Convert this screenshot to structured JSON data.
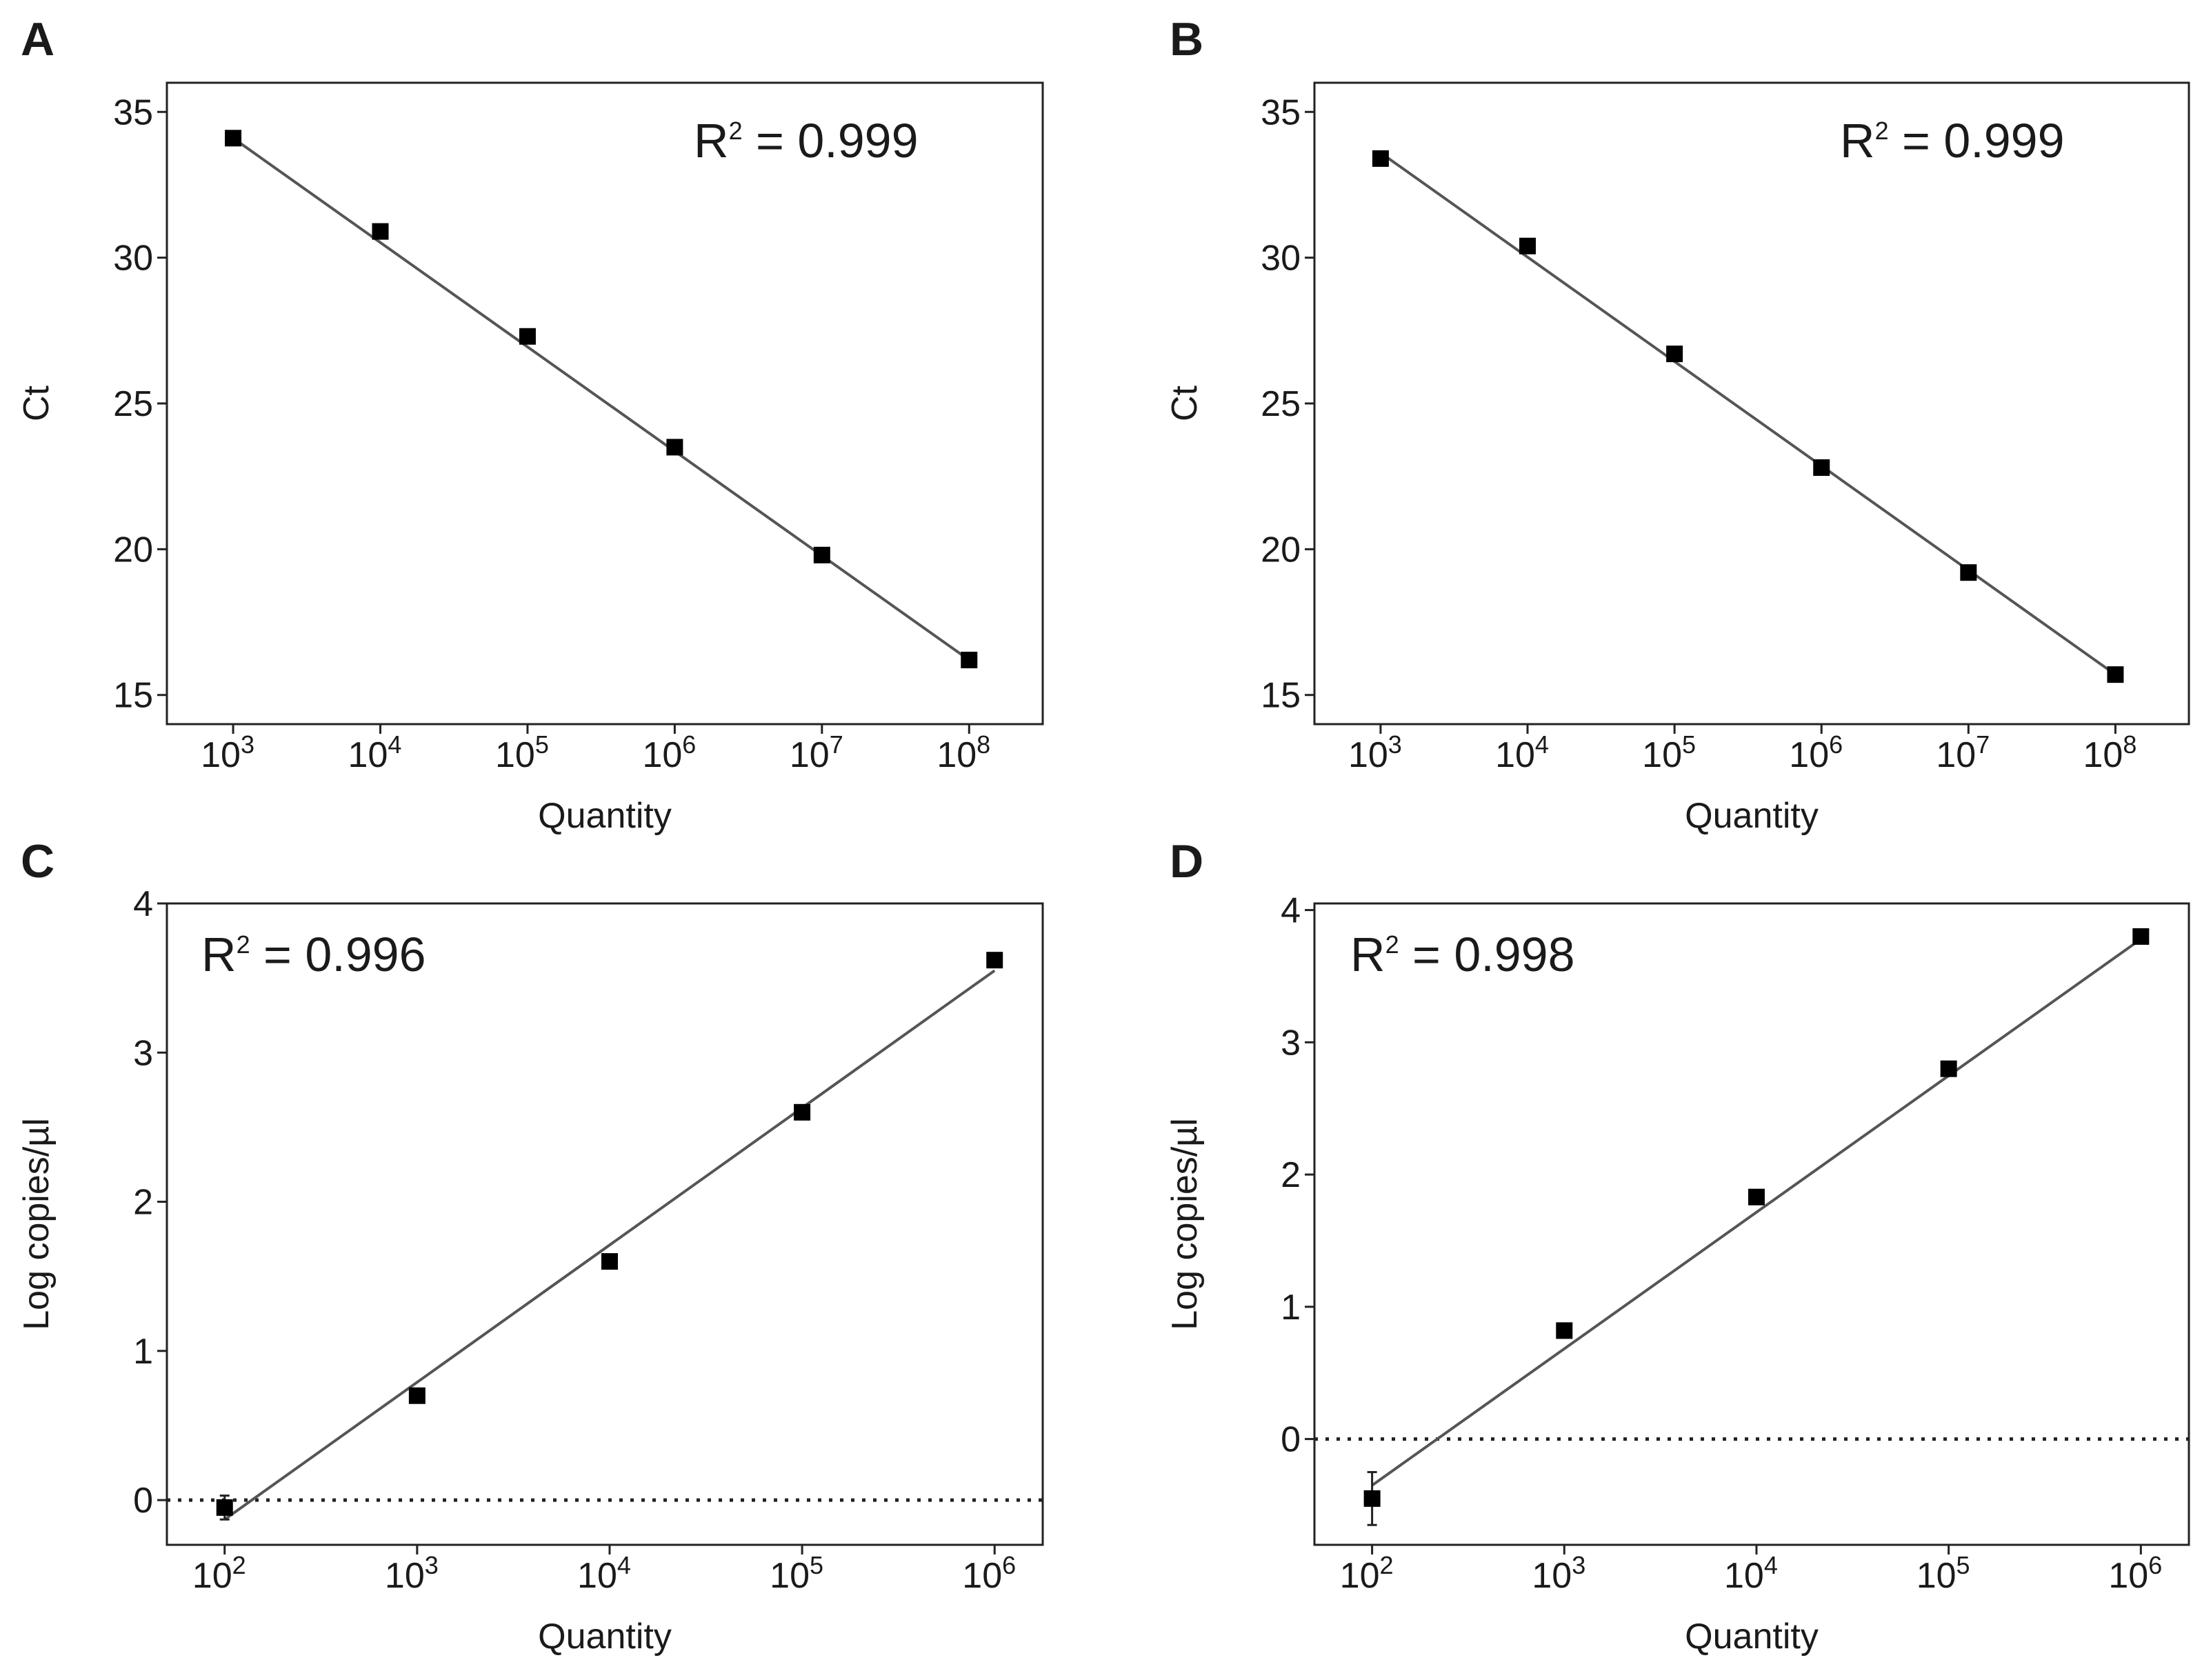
{
  "chart_data": [
    {
      "panel": "A",
      "type": "scatter",
      "title": "",
      "xlabel": "Quantity",
      "ylabel": "Ct",
      "x_scale": "log10",
      "x_tick_exponents": [
        3,
        4,
        5,
        6,
        7,
        8
      ],
      "xlim_exponent": [
        2.55,
        8.5
      ],
      "y_ticks": [
        15,
        20,
        25,
        30,
        35
      ],
      "ylim": [
        14,
        36
      ],
      "series": [
        {
          "name": "Ct",
          "x_exponents": [
            3,
            4,
            5,
            6,
            7,
            8
          ],
          "values": [
            34.1,
            30.9,
            27.3,
            23.5,
            19.8,
            16.2
          ]
        }
      ],
      "fit": {
        "x_exponents": [
          3,
          8
        ],
        "values": [
          34.1,
          16.2
        ]
      },
      "annotation": {
        "prefix": "R",
        "sup": "2",
        "suffix": " = 0.999"
      },
      "legend": "none"
    },
    {
      "panel": "B",
      "type": "scatter",
      "title": "",
      "xlabel": "Quantity",
      "ylabel": "Ct",
      "x_scale": "log10",
      "x_tick_exponents": [
        3,
        4,
        5,
        6,
        7,
        8
      ],
      "xlim_exponent": [
        2.55,
        8.5
      ],
      "y_ticks": [
        15,
        20,
        25,
        30,
        35
      ],
      "ylim": [
        14,
        36
      ],
      "series": [
        {
          "name": "Ct",
          "x_exponents": [
            3,
            4,
            5,
            6,
            7,
            8
          ],
          "values": [
            33.4,
            30.4,
            26.7,
            22.8,
            19.2,
            15.7
          ]
        }
      ],
      "fit": {
        "x_exponents": [
          3,
          8
        ],
        "values": [
          33.6,
          15.7
        ]
      },
      "annotation": {
        "prefix": "R",
        "sup": "2",
        "suffix": " = 0.999"
      },
      "legend": "none"
    },
    {
      "panel": "C",
      "type": "scatter",
      "title": "",
      "xlabel": "Quantity",
      "ylabel": "Log copies/µl",
      "x_scale": "log10",
      "x_tick_exponents": [
        2,
        3,
        4,
        5,
        6
      ],
      "xlim_exponent": [
        1.7,
        6.25
      ],
      "y_ticks": [
        0,
        1,
        2,
        3,
        4
      ],
      "ylim": [
        -0.3,
        4
      ],
      "series": [
        {
          "name": "Log copies/µl",
          "x_exponents": [
            2,
            3,
            4,
            5,
            6
          ],
          "values": [
            -0.05,
            0.7,
            1.6,
            2.6,
            3.62
          ],
          "error": [
            0.08,
            0,
            0,
            0,
            0
          ]
        }
      ],
      "fit": {
        "x_exponents": [
          2,
          6
        ],
        "values": [
          -0.13,
          3.55
        ]
      },
      "reference_line": {
        "y": 0,
        "style": "dotted"
      },
      "annotation": {
        "prefix": "R",
        "sup": "2",
        "suffix": " = 0.996"
      },
      "legend": "none"
    },
    {
      "panel": "D",
      "type": "scatter",
      "title": "",
      "xlabel": "Quantity",
      "ylabel": "Log copies/µl",
      "x_scale": "log10",
      "x_tick_exponents": [
        2,
        3,
        4,
        5,
        6
      ],
      "xlim_exponent": [
        1.7,
        6.25
      ],
      "y_ticks": [
        0,
        1,
        2,
        3,
        4
      ],
      "ylim": [
        -0.8,
        4.05
      ],
      "series": [
        {
          "name": "Log copies/µl",
          "x_exponents": [
            2,
            3,
            4,
            5,
            6
          ],
          "values": [
            -0.45,
            0.82,
            1.83,
            2.8,
            3.8
          ],
          "error": [
            0.2,
            0,
            0,
            0,
            0
          ]
        }
      ],
      "fit": {
        "x_exponents": [
          2,
          6
        ],
        "values": [
          -0.35,
          3.78
        ]
      },
      "reference_line": {
        "y": 0,
        "style": "dotted"
      },
      "annotation": {
        "prefix": "R",
        "sup": "2",
        "suffix": " = 0.998"
      },
      "legend": "none"
    }
  ]
}
